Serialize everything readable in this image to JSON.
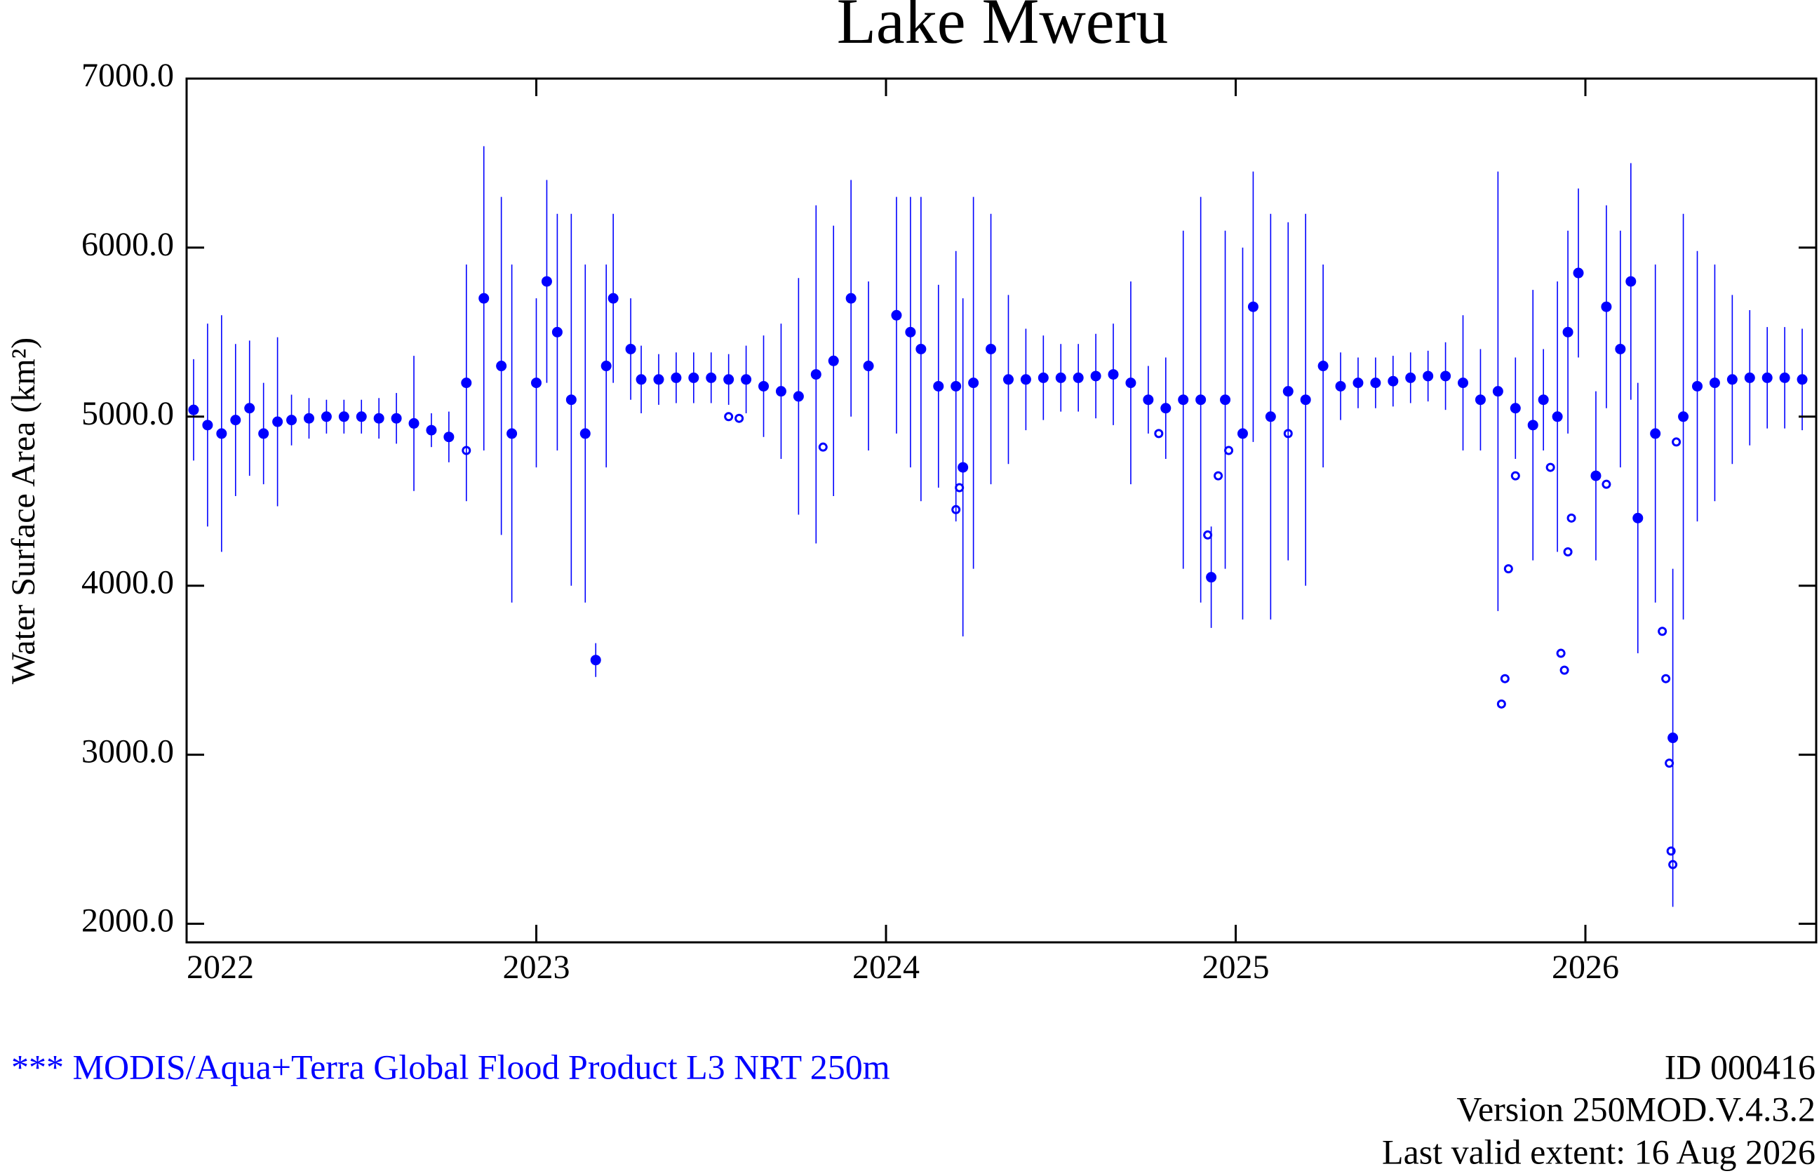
{
  "chart_data": {
    "type": "scatter",
    "title": "Lake Mweru",
    "ylabel": "Water Surface Area (km²)",
    "xlim": [
      2022,
      2026.66
    ],
    "xticks": [
      2022,
      2023,
      2024,
      2025,
      2026
    ],
    "ylim": [
      1890,
      7000
    ],
    "yticks": [
      {
        "value": 2000,
        "label": "2000.0"
      },
      {
        "value": 3000,
        "label": "3000.0"
      },
      {
        "value": 4000,
        "label": "4000.0"
      },
      {
        "value": 5000,
        "label": "5000.0"
      },
      {
        "value": 6000,
        "label": "6000.0"
      },
      {
        "value": 7000,
        "label": "7000.0"
      }
    ],
    "series": [
      {
        "color": "#0000ff",
        "marker": "filled",
        "x": [
          2022.02,
          2022.06,
          2022.1,
          2022.14,
          2022.18,
          2022.22,
          2022.26,
          2022.3,
          2022.35,
          2022.4,
          2022.45,
          2022.5,
          2022.55,
          2022.6,
          2022.65,
          2022.7,
          2022.75,
          2022.8,
          2022.85,
          2022.9,
          2022.93,
          2023.0,
          2023.03,
          2023.06,
          2023.1,
          2023.14,
          2023.17,
          2023.2,
          2023.22,
          2023.27,
          2023.3,
          2023.35,
          2023.4,
          2023.45,
          2023.5,
          2023.55,
          2023.6,
          2023.65,
          2023.7,
          2023.75,
          2023.8,
          2023.85,
          2023.9,
          2023.95,
          2024.03,
          2024.07,
          2024.1,
          2024.15,
          2024.2,
          2024.22,
          2024.25,
          2024.3,
          2024.35,
          2024.4,
          2024.45,
          2024.5,
          2024.55,
          2024.6,
          2024.65,
          2024.7,
          2024.75,
          2024.8,
          2024.85,
          2024.9,
          2024.93,
          2024.97,
          2025.02,
          2025.05,
          2025.1,
          2025.15,
          2025.2,
          2025.25,
          2025.3,
          2025.35,
          2025.4,
          2025.45,
          2025.5,
          2025.55,
          2025.6,
          2025.65,
          2025.7,
          2025.75,
          2025.8,
          2025.85,
          2025.88,
          2025.92,
          2025.95,
          2025.98,
          2026.03,
          2026.06,
          2026.1,
          2026.13,
          2026.15,
          2026.2,
          2026.25,
          2026.28,
          2026.32,
          2026.37,
          2026.42,
          2026.47,
          2026.52,
          2026.57,
          2026.62
        ],
        "values": [
          5040,
          4950,
          4900,
          4980,
          5050,
          4900,
          4970,
          4980,
          4990,
          5000,
          5000,
          5000,
          4990,
          4990,
          4960,
          4920,
          4880,
          5200,
          5700,
          5300,
          4900,
          5200,
          5800,
          5500,
          5100,
          4900,
          3560,
          5300,
          5700,
          5400,
          5220,
          5220,
          5230,
          5230,
          5230,
          5220,
          5220,
          5180,
          5150,
          5120,
          5250,
          5330,
          5700,
          5300,
          5600,
          5500,
          5400,
          5180,
          5180,
          4700,
          5200,
          5400,
          5220,
          5220,
          5230,
          5230,
          5230,
          5240,
          5250,
          5200,
          5100,
          5050,
          5100,
          5100,
          4050,
          5100,
          4900,
          5650,
          5000,
          5150,
          5100,
          5300,
          5180,
          5200,
          5200,
          5210,
          5230,
          5240,
          5240,
          5200,
          5100,
          5150,
          5050,
          4950,
          5100,
          5000,
          5500,
          5850,
          4650,
          5650,
          5400,
          5800,
          4400,
          4900,
          3100,
          5000,
          5180,
          5200,
          5220,
          5230,
          5230,
          5230,
          5220
        ],
        "errors": [
          300,
          600,
          700,
          450,
          400,
          300,
          500,
          150,
          120,
          100,
          100,
          100,
          120,
          150,
          400,
          100,
          150,
          700,
          900,
          1000,
          1000,
          500,
          600,
          700,
          1100,
          1000,
          100,
          600,
          500,
          300,
          200,
          150,
          150,
          150,
          150,
          150,
          200,
          300,
          400,
          700,
          1000,
          800,
          700,
          500,
          700,
          800,
          900,
          600,
          800,
          1000,
          1100,
          800,
          500,
          300,
          250,
          200,
          200,
          250,
          300,
          600,
          200,
          300,
          1000,
          1200,
          300,
          1000,
          1100,
          800,
          1200,
          1000,
          1100,
          600,
          200,
          150,
          150,
          150,
          150,
          150,
          200,
          400,
          300,
          1300,
          300,
          800,
          300,
          800,
          600,
          500,
          500,
          600,
          700,
          700,
          800,
          1000,
          1000,
          1200,
          800,
          700,
          500,
          400,
          300,
          300,
          300
        ]
      },
      {
        "color": "#0000ff",
        "marker": "open",
        "x": [
          2022.8,
          2023.55,
          2023.58,
          2023.82,
          2024.2,
          2024.21,
          2024.78,
          2024.92,
          2024.95,
          2024.98,
          2025.15,
          2025.77,
          2025.76,
          2025.78,
          2025.8,
          2025.9,
          2025.93,
          2025.94,
          2025.95,
          2025.96,
          2026.06,
          2026.22,
          2026.23,
          2026.24,
          2026.245,
          2026.25,
          2026.26
        ],
        "values": [
          4800,
          5000,
          4990,
          4820,
          4450,
          4580,
          4900,
          4300,
          4650,
          4800,
          4900,
          3450,
          3300,
          4100,
          4650,
          4700,
          3600,
          3500,
          4200,
          4400,
          4600,
          3730,
          3450,
          2950,
          2430,
          2350,
          4850
        ]
      }
    ],
    "footer_left": "*** MODIS/Aqua+Terra Global Flood Product L3 NRT 250m",
    "footer_right": [
      "ID 000416",
      "Version 250MOD.V.4.3.2",
      "Last valid extent: 16 Aug 2026"
    ]
  }
}
